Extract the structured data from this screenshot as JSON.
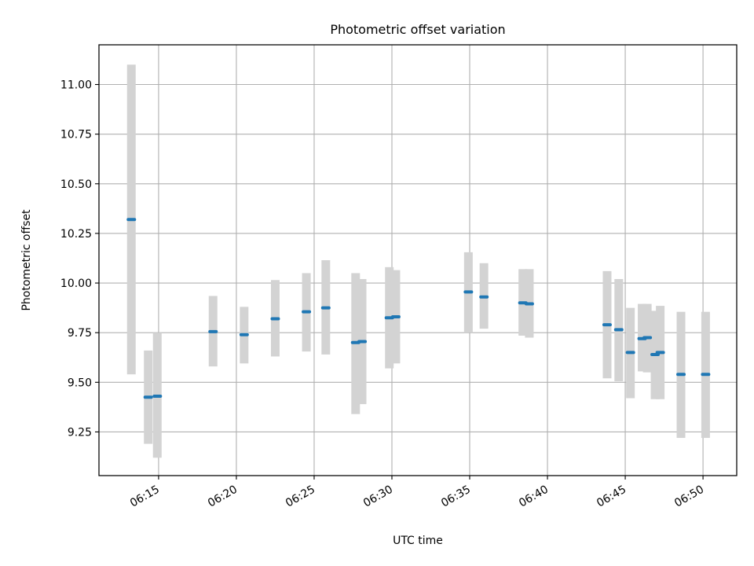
{
  "chart_data": {
    "type": "scatter",
    "title": "Photometric offset variation",
    "xlabel": "UTC time",
    "ylabel": "Photometric offset",
    "xlim": [
      "06:11:10",
      "06:52:10"
    ],
    "ylim": [
      9.03,
      11.2
    ],
    "x_ticks": [
      "06:15",
      "06:20",
      "06:25",
      "06:30",
      "06:35",
      "06:40",
      "06:45",
      "06:50"
    ],
    "y_ticks": [
      "9.25",
      "9.50",
      "9.75",
      "10.00",
      "10.25",
      "10.50",
      "10.75",
      "11.00"
    ],
    "grid": true,
    "colors": {
      "points": "#1f77b4",
      "error_bars": "#d3d3d3",
      "grid": "#b0b0b0"
    },
    "series": [
      {
        "points": [
          {
            "x": "06:13:15",
            "y": 10.32,
            "yerr_low": 9.54,
            "yerr_high": 11.1
          },
          {
            "x": "06:14:20",
            "y": 9.425,
            "yerr_low": 9.19,
            "yerr_high": 9.66
          },
          {
            "x": "06:14:55",
            "y": 9.43,
            "yerr_low": 9.12,
            "yerr_high": 9.75
          },
          {
            "x": "06:18:30",
            "y": 9.755,
            "yerr_low": 9.58,
            "yerr_high": 9.935
          },
          {
            "x": "06:20:30",
            "y": 9.74,
            "yerr_low": 9.595,
            "yerr_high": 9.88
          },
          {
            "x": "06:22:30",
            "y": 9.82,
            "yerr_low": 9.63,
            "yerr_high": 10.015
          },
          {
            "x": "06:24:30",
            "y": 9.855,
            "yerr_low": 9.655,
            "yerr_high": 10.05
          },
          {
            "x": "06:25:45",
            "y": 9.875,
            "yerr_low": 9.64,
            "yerr_high": 10.115
          },
          {
            "x": "06:27:40",
            "y": 9.7,
            "yerr_low": 9.34,
            "yerr_high": 10.05
          },
          {
            "x": "06:28:05",
            "y": 9.705,
            "yerr_low": 9.39,
            "yerr_high": 10.02
          },
          {
            "x": "06:29:50",
            "y": 9.825,
            "yerr_low": 9.57,
            "yerr_high": 10.08
          },
          {
            "x": "06:30:15",
            "y": 9.83,
            "yerr_low": 9.595,
            "yerr_high": 10.065
          },
          {
            "x": "06:34:55",
            "y": 9.955,
            "yerr_low": 9.75,
            "yerr_high": 10.155
          },
          {
            "x": "06:35:55",
            "y": 9.93,
            "yerr_low": 9.77,
            "yerr_high": 10.1
          },
          {
            "x": "06:38:25",
            "y": 9.9,
            "yerr_low": 9.735,
            "yerr_high": 10.07
          },
          {
            "x": "06:38:50",
            "y": 9.895,
            "yerr_low": 9.725,
            "yerr_high": 10.07
          },
          {
            "x": "06:43:50",
            "y": 9.79,
            "yerr_low": 9.52,
            "yerr_high": 10.06
          },
          {
            "x": "06:44:35",
            "y": 9.765,
            "yerr_low": 9.505,
            "yerr_high": 10.02
          },
          {
            "x": "06:45:20",
            "y": 9.65,
            "yerr_low": 9.42,
            "yerr_high": 9.875
          },
          {
            "x": "06:46:05",
            "y": 9.72,
            "yerr_low": 9.555,
            "yerr_high": 9.895
          },
          {
            "x": "06:46:25",
            "y": 9.725,
            "yerr_low": 9.55,
            "yerr_high": 9.895
          },
          {
            "x": "06:46:55",
            "y": 9.64,
            "yerr_low": 9.415,
            "yerr_high": 9.86
          },
          {
            "x": "06:47:15",
            "y": 9.65,
            "yerr_low": 9.415,
            "yerr_high": 9.885
          },
          {
            "x": "06:48:35",
            "y": 9.54,
            "yerr_low": 9.22,
            "yerr_high": 9.855
          },
          {
            "x": "06:50:10",
            "y": 9.54,
            "yerr_low": 9.22,
            "yerr_high": 9.855
          }
        ]
      }
    ]
  }
}
